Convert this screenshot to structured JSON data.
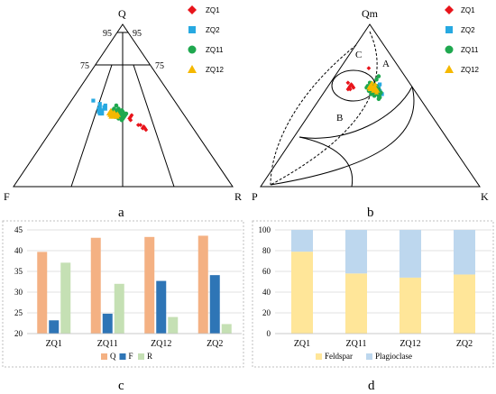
{
  "panels": {
    "a": {
      "label": "a",
      "apex_top": "Q",
      "apex_left": "F",
      "apex_right": "R",
      "guide_labels": [
        "95",
        "95",
        "75",
        "75"
      ]
    },
    "b": {
      "label": "b",
      "apex_top": "Qm",
      "apex_left": "P",
      "apex_right": "K",
      "field_labels": [
        "A",
        "B",
        "C"
      ]
    },
    "c": {
      "label": "c"
    },
    "d": {
      "label": "d"
    }
  },
  "legend_samples": {
    "items": [
      {
        "name": "ZQ1",
        "marker": "diamond",
        "color": "#e8141b"
      },
      {
        "name": "ZQ2",
        "marker": "square",
        "color": "#27a9e1"
      },
      {
        "name": "ZQ11",
        "marker": "circle",
        "color": "#1fa84f"
      },
      {
        "name": "ZQ12",
        "marker": "triangle",
        "color": "#f5b800"
      }
    ]
  },
  "chart_data": [
    {
      "type": "scatter",
      "panel": "a",
      "diagram": "ternary",
      "axes": [
        "Q",
        "F",
        "R"
      ],
      "series": [
        {
          "name": "ZQ1",
          "color": "#e8141b",
          "points": [
            [
              44,
              24,
              32
            ],
            [
              43,
              25,
              32
            ],
            [
              41,
              26,
              33
            ],
            [
              42,
              26,
              32
            ],
            [
              38,
              23,
              39
            ],
            [
              37,
              22,
              41
            ],
            [
              36,
              23,
              41
            ],
            [
              36,
              22,
              42
            ],
            [
              35,
              22,
              43
            ],
            [
              38,
              24,
              38
            ]
          ]
        },
        {
          "name": "ZQ2",
          "color": "#27a9e1",
          "points": [
            [
              47,
              36,
              17
            ],
            [
              46,
              38,
              16
            ],
            [
              49,
              36,
              15
            ],
            [
              50,
              33,
              17
            ],
            [
              45,
              38,
              17
            ],
            [
              48,
              34,
              18
            ],
            [
              46,
              37,
              17
            ],
            [
              48,
              37,
              15
            ],
            [
              53,
              37,
              10
            ],
            [
              45,
              37,
              18
            ],
            [
              49,
              34,
              17
            ],
            [
              51,
              35,
              14
            ]
          ]
        },
        {
          "name": "ZQ11",
          "color": "#1fa84f",
          "points": [
            [
              43,
              29,
              28
            ],
            [
              44,
              30,
              26
            ],
            [
              45,
              28,
              27
            ],
            [
              42,
              31,
              27
            ],
            [
              46,
              27,
              27
            ],
            [
              44,
              28,
              28
            ],
            [
              43,
              30,
              27
            ],
            [
              47,
              29,
              24
            ],
            [
              45,
              31,
              24
            ],
            [
              42,
              29,
              29
            ],
            [
              48,
              28,
              24
            ],
            [
              44,
              27,
              29
            ],
            [
              46,
              30,
              24
            ],
            [
              43,
              32,
              25
            ],
            [
              45,
              26,
              29
            ],
            [
              47,
              27,
              26
            ],
            [
              41,
              30,
              29
            ],
            [
              44,
              31,
              25
            ],
            [
              46,
              29,
              25
            ],
            [
              43,
              28,
              29
            ],
            [
              45,
              30,
              25
            ],
            [
              48,
              30,
              22
            ],
            [
              42,
              30,
              28
            ],
            [
              44,
              29,
              27
            ],
            [
              46,
              28,
              26
            ],
            [
              47,
              31,
              22
            ],
            [
              43,
              31,
              26
            ],
            [
              45,
              29,
              26
            ],
            [
              44,
              32,
              24
            ],
            [
              50,
              28,
              22
            ]
          ]
        },
        {
          "name": "ZQ12",
          "color": "#f5b800",
          "points": [
            [
              44,
              32,
              24
            ],
            [
              45,
              31,
              24
            ],
            [
              43,
              33,
              24
            ],
            [
              46,
              32,
              22
            ],
            [
              44,
              31,
              25
            ],
            [
              45,
              33,
              22
            ],
            [
              43,
              32,
              25
            ],
            [
              46,
              31,
              23
            ],
            [
              44,
              33,
              23
            ],
            [
              45,
              32,
              23
            ],
            [
              47,
              32,
              21
            ],
            [
              43,
              31,
              26
            ],
            [
              44,
              34,
              22
            ],
            [
              46,
              33,
              21
            ],
            [
              45,
              30,
              25
            ],
            [
              44,
              30,
              26
            ],
            [
              45,
              34,
              21
            ],
            [
              43,
              34,
              23
            ]
          ]
        }
      ]
    },
    {
      "type": "scatter",
      "panel": "b",
      "diagram": "ternary",
      "axes": [
        "Qm",
        "P",
        "K"
      ],
      "series": [
        {
          "name": "ZQ1",
          "color": "#e8141b",
          "points": [
            [
              62,
              28,
              10
            ],
            [
              61,
              29,
              10
            ],
            [
              60,
              30,
              10
            ],
            [
              63,
              27,
              10
            ],
            [
              62,
              27,
              11
            ],
            [
              60,
              29,
              11
            ],
            [
              64,
              28,
              8
            ],
            [
              61,
              27,
              12
            ],
            [
              73,
              14,
              13
            ]
          ]
        },
        {
          "name": "ZQ2",
          "color": "#27a9e1",
          "points": [
            [
              60,
              16,
              24
            ],
            [
              58,
              17,
              25
            ],
            [
              62,
              15,
              23
            ],
            [
              59,
              16,
              25
            ],
            [
              61,
              17,
              22
            ],
            [
              57,
              16,
              27
            ],
            [
              63,
              14,
              23
            ],
            [
              60,
              18,
              22
            ]
          ]
        },
        {
          "name": "ZQ11",
          "color": "#1fa84f",
          "points": [
            [
              60,
              18,
              22
            ],
            [
              59,
              19,
              22
            ],
            [
              58,
              18,
              24
            ],
            [
              61,
              17,
              22
            ],
            [
              57,
              19,
              24
            ],
            [
              62,
              18,
              20
            ],
            [
              56,
              18,
              26
            ],
            [
              60,
              20,
              20
            ],
            [
              59,
              17,
              24
            ],
            [
              58,
              20,
              22
            ],
            [
              61,
              19,
              20
            ],
            [
              57,
              17,
              26
            ],
            [
              63,
              17,
              20
            ],
            [
              60,
              17,
              23
            ],
            [
              58,
              19,
              23
            ],
            [
              56,
              20,
              24
            ],
            [
              62,
              16,
              22
            ],
            [
              59,
              21,
              20
            ],
            [
              55,
              18,
              27
            ],
            [
              61,
              21,
              18
            ],
            [
              57,
              21,
              22
            ],
            [
              60,
              16,
              24
            ],
            [
              64,
              18,
              18
            ],
            [
              58,
              16,
              26
            ],
            [
              54,
              19,
              27
            ],
            [
              62,
              20,
              18
            ],
            [
              59,
              18,
              23
            ],
            [
              66,
              14,
              20
            ],
            [
              68,
              12,
              20
            ]
          ]
        },
        {
          "name": "ZQ12",
          "color": "#f5b800",
          "points": [
            [
              61,
              18,
              21
            ],
            [
              60,
              19,
              21
            ],
            [
              62,
              17,
              21
            ],
            [
              59,
              18,
              23
            ],
            [
              61,
              19,
              20
            ],
            [
              60,
              17,
              23
            ],
            [
              62,
              19,
              19
            ],
            [
              63,
              18,
              19
            ],
            [
              59,
              19,
              22
            ],
            [
              60,
              18,
              22
            ],
            [
              61,
              17,
              22
            ],
            [
              62,
              18,
              20
            ],
            [
              58,
              18,
              24
            ],
            [
              64,
              17,
              19
            ],
            [
              60,
              20,
              20
            ],
            [
              61,
              20,
              19
            ],
            [
              63,
              16,
              21
            ],
            [
              59,
              17,
              24
            ]
          ]
        }
      ]
    },
    {
      "type": "bar",
      "panel": "c",
      "categories": [
        "ZQ1",
        "ZQ11",
        "ZQ12",
        "ZQ2"
      ],
      "series": [
        {
          "name": "Q",
          "color": "#f4b183",
          "values": [
            39.7,
            43.1,
            43.3,
            43.6
          ]
        },
        {
          "name": "F",
          "color": "#2e75b6",
          "values": [
            23.2,
            24.8,
            32.7,
            34.1
          ]
        },
        {
          "name": "R",
          "color": "#c5e0b4",
          "values": [
            37.1,
            32.0,
            24.0,
            22.3
          ]
        }
      ],
      "ylim": [
        20,
        45
      ],
      "yticks": [
        "20",
        "25",
        "30",
        "35",
        "40",
        "45"
      ],
      "legend_position": "bottom"
    },
    {
      "type": "bar",
      "panel": "d",
      "stacked": true,
      "categories": [
        "ZQ1",
        "ZQ11",
        "ZQ12",
        "ZQ2"
      ],
      "series": [
        {
          "name": "Feldspar",
          "color": "#ffe699",
          "values": [
            79,
            58,
            54,
            57
          ]
        },
        {
          "name": "Plagioclase",
          "color": "#bdd7ee",
          "values": [
            21,
            42,
            46,
            43
          ]
        }
      ],
      "ylim": [
        0,
        100
      ],
      "yticks": [
        "0",
        "20",
        "40",
        "60",
        "80",
        "100"
      ],
      "legend_position": "bottom"
    }
  ]
}
